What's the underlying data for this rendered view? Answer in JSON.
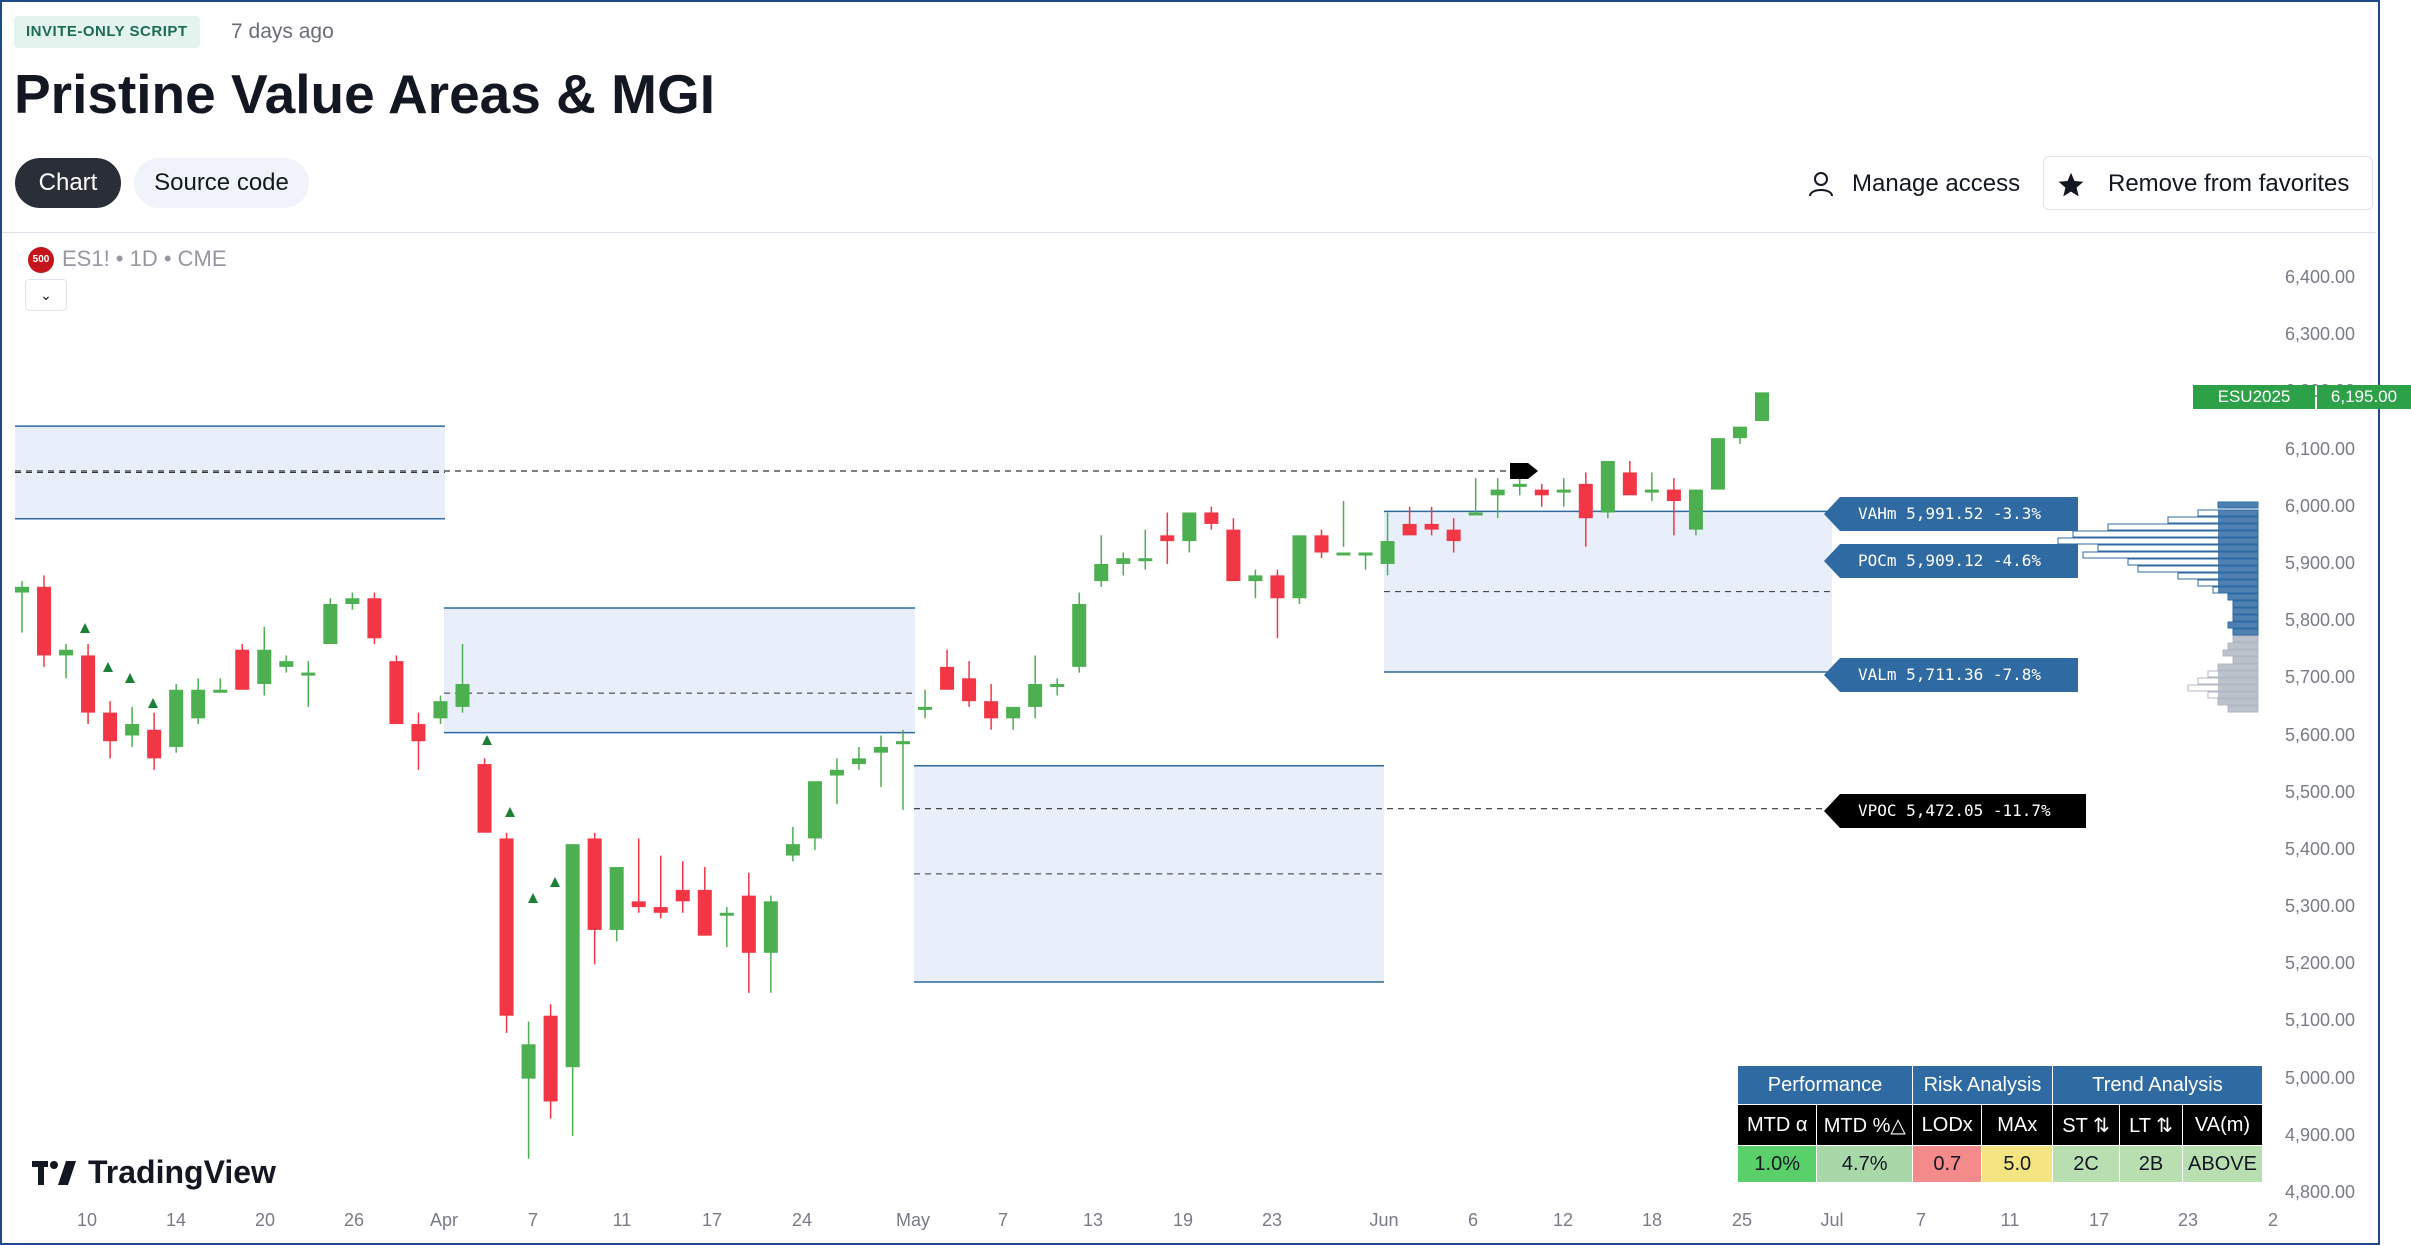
{
  "header": {
    "badge": "INVITE-ONLY SCRIPT",
    "age": "7 days ago",
    "title": "Pristine Value Areas & MGI"
  },
  "tabs": [
    {
      "label": "Chart",
      "active": true
    },
    {
      "label": "Source code",
      "active": false
    }
  ],
  "actions": {
    "manage_access": "Manage access",
    "remove_favorites": "Remove from favorites"
  },
  "chart": {
    "symbol_icon": "500",
    "symbol": "ES1! • 1D • CME",
    "logo": "TradingView",
    "price_tag_symbol": "ESU2025",
    "price_tag_value": "6,195.00",
    "y_ticks": [
      "6,400.00",
      "6,300.00",
      "6,200.00",
      "6,100.00",
      "6,000.00",
      "5,900.00",
      "5,800.00",
      "5,700.00",
      "5,600.00",
      "5,500.00",
      "5,400.00",
      "5,300.00",
      "5,200.00",
      "5,100.00",
      "5,000.00",
      "4,900.00",
      "4,800.00"
    ],
    "x_ticks": [
      "10",
      "14",
      "20",
      "26",
      "Apr",
      "7",
      "11",
      "17",
      "24",
      "May",
      "7",
      "13",
      "19",
      "23",
      "Jun",
      "6",
      "12",
      "18",
      "25",
      "Jul",
      "7",
      "11",
      "17",
      "23",
      "2"
    ],
    "levels": {
      "vah": "VAHm 5,991.52 -3.3%",
      "poc": "POCm 5,909.12 -4.6%",
      "val": "VALm 5,711.36 -7.8%",
      "vpoc": "VPOC 5,472.05 -11.7%"
    },
    "colors": {
      "up": "#4caf50",
      "down": "#f23645",
      "value_area": "#e9effa",
      "accent": "#2f6aa3"
    }
  },
  "chart_data": {
    "type": "candlestick",
    "title": "",
    "ylim": [
      4800,
      6400
    ],
    "candles_ohlc": [
      [
        5850,
        5870,
        5780,
        5860
      ],
      [
        5860,
        5880,
        5720,
        5740
      ],
      [
        5740,
        5760,
        5700,
        5750
      ],
      [
        5740,
        5760,
        5620,
        5640
      ],
      [
        5640,
        5660,
        5560,
        5590
      ],
      [
        5600,
        5650,
        5580,
        5620
      ],
      [
        5610,
        5640,
        5540,
        5560
      ],
      [
        5580,
        5690,
        5570,
        5680
      ],
      [
        5630,
        5700,
        5620,
        5680
      ],
      [
        5680,
        5700,
        5680,
        5680
      ],
      [
        5750,
        5760,
        5680,
        5680
      ],
      [
        5690,
        5790,
        5670,
        5750
      ],
      [
        5720,
        5740,
        5710,
        5730
      ],
      [
        5710,
        5730,
        5650,
        5710
      ],
      [
        5760,
        5840,
        5760,
        5830
      ],
      [
        5830,
        5850,
        5820,
        5840
      ],
      [
        5840,
        5850,
        5760,
        5770
      ],
      [
        5730,
        5740,
        5620,
        5620
      ],
      [
        5620,
        5640,
        5540,
        5590
      ],
      [
        5630,
        5670,
        5620,
        5660
      ],
      [
        5650,
        5760,
        5640,
        5690
      ],
      [
        5550,
        5560,
        5440,
        5430
      ],
      [
        5420,
        5430,
        5080,
        5110
      ],
      [
        5000,
        5100,
        4860,
        5060
      ],
      [
        5110,
        5130,
        4930,
        4960
      ],
      [
        5020,
        5400,
        4900,
        5410
      ],
      [
        5420,
        5430,
        5200,
        5260
      ],
      [
        5260,
        5370,
        5240,
        5370
      ],
      [
        5310,
        5420,
        5290,
        5300
      ],
      [
        5300,
        5390,
        5280,
        5290
      ],
      [
        5330,
        5380,
        5290,
        5310
      ],
      [
        5330,
        5370,
        5250,
        5250
      ],
      [
        5290,
        5300,
        5230,
        5290
      ],
      [
        5320,
        5360,
        5150,
        5220
      ],
      [
        5220,
        5320,
        5150,
        5310
      ],
      [
        5390,
        5440,
        5380,
        5410
      ],
      [
        5420,
        5510,
        5400,
        5520
      ],
      [
        5530,
        5560,
        5480,
        5540
      ],
      [
        5550,
        5580,
        5540,
        5560
      ],
      [
        5570,
        5600,
        5510,
        5580
      ],
      [
        5590,
        5610,
        5470,
        5590
      ],
      [
        5650,
        5680,
        5630,
        5650
      ],
      [
        5720,
        5750,
        5700,
        5680
      ],
      [
        5700,
        5730,
        5650,
        5660
      ],
      [
        5660,
        5690,
        5610,
        5630
      ],
      [
        5630,
        5650,
        5610,
        5650
      ],
      [
        5650,
        5740,
        5630,
        5690
      ],
      [
        5690,
        5700,
        5670,
        5690
      ],
      [
        5720,
        5850,
        5710,
        5830
      ],
      [
        5870,
        5950,
        5860,
        5900
      ],
      [
        5900,
        5920,
        5880,
        5910
      ],
      [
        5910,
        5960,
        5890,
        5910
      ],
      [
        5950,
        5990,
        5900,
        5940
      ],
      [
        5940,
        5980,
        5920,
        5990
      ],
      [
        5990,
        6000,
        5960,
        5970
      ],
      [
        5960,
        5980,
        5870,
        5870
      ],
      [
        5870,
        5890,
        5840,
        5880
      ],
      [
        5880,
        5890,
        5770,
        5840
      ],
      [
        5840,
        5950,
        5830,
        5950
      ],
      [
        5950,
        5960,
        5910,
        5920
      ],
      [
        5920,
        6010,
        5930,
        5920
      ],
      [
        5920,
        5920,
        5890,
        5920
      ],
      [
        5900,
        5990,
        5880,
        5940
      ],
      [
        5970,
        6000,
        5960,
        5950
      ],
      [
        5970,
        6000,
        5950,
        5960
      ],
      [
        5960,
        5980,
        5920,
        5940
      ],
      [
        5990,
        6050,
        5990,
        5990
      ],
      [
        6020,
        6050,
        5980,
        6030
      ],
      [
        6040,
        6060,
        6020,
        6040
      ],
      [
        6030,
        6040,
        6000,
        6020
      ],
      [
        6030,
        6050,
        6000,
        6030
      ],
      [
        6040,
        6060,
        5930,
        5980
      ],
      [
        5990,
        6080,
        5980,
        6080
      ],
      [
        6060,
        6080,
        6030,
        6020
      ],
      [
        6030,
        6060,
        6010,
        6030
      ],
      [
        6030,
        6050,
        5950,
        6010
      ],
      [
        5960,
        6030,
        5950,
        6030
      ],
      [
        6030,
        6110,
        6030,
        6120
      ],
      [
        6120,
        6140,
        6110,
        6140
      ],
      [
        6150,
        6200,
        6150,
        6200
      ]
    ],
    "value_areas": [
      {
        "high": 6141,
        "low": 5979
      },
      {
        "high": 5823,
        "low": 5605
      },
      {
        "high": 5547,
        "low": 5169
      },
      {
        "high": 5992,
        "low": 5711
      }
    ],
    "vah": 5991.52,
    "poc": 5909.12,
    "val": 5711.36,
    "vpoc": 5472.05,
    "last_price": 6195.0
  },
  "table": {
    "groups": [
      {
        "label": "Performance",
        "span": 2
      },
      {
        "label": "Risk Analysis",
        "span": 2
      },
      {
        "label": "Trend Analysis",
        "span": 3
      }
    ],
    "headers": [
      "MTD α",
      "MTD %△",
      "LODx",
      "MAx",
      "ST ⇅",
      "LT ⇅",
      "VA(m)"
    ],
    "values": [
      "1.0%",
      "4.7%",
      "0.7",
      "5.0",
      "2C",
      "2B",
      "ABOVE"
    ],
    "value_colors": [
      "#5ad06b",
      "#a8d8a8",
      "#f48a8a",
      "#f5e580",
      "#b9dfb1",
      "#b9dfb1",
      "#b9dfb1"
    ]
  }
}
